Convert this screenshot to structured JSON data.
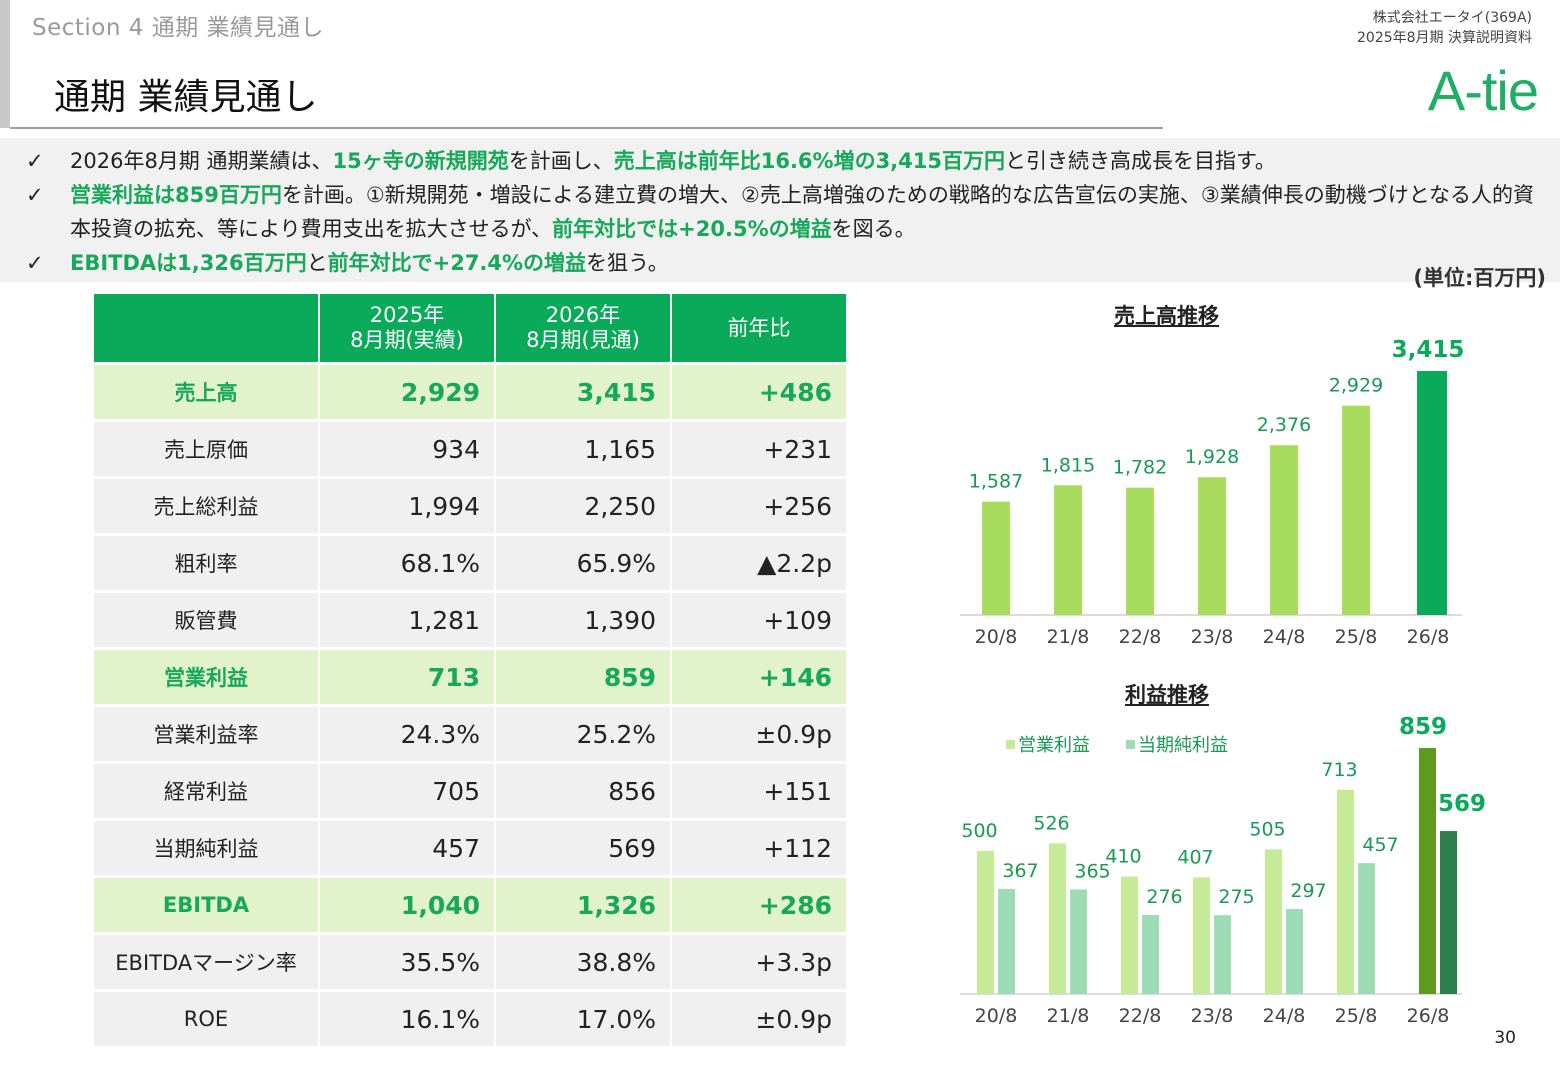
{
  "header": {
    "section_label": "Section 4  通期 業績見通し",
    "page_title": "通期 業績見通し",
    "company_line1": "株式会社エータイ(369A)",
    "company_line2": "2025年8月期  決算説明資料",
    "logo_text": "A-tie"
  },
  "bullets": {
    "check_icon": "✓",
    "b1": [
      "2026年8月期 通期業績は、",
      "15ヶ寺の新規開苑",
      "を計画し、",
      "売上高は前年比16.6%増の3,415百万円",
      "と引き続き高成長を目指す。"
    ],
    "b2": [
      "営業利益は859百万円",
      "を計画。①新規開苑・増設による建立費の増大、②売上高増強のための戦略的な広告宣伝の実施、③業績伸長の動機づけとなる人的資本投資の拡充、等により費用支出を拡大させるが、",
      "前年対比では+20.5%の増益",
      "を図る。"
    ],
    "b3": [
      "EBITDAは1,326百万円",
      "と",
      "前年対比で+27.4%の増益",
      "を狙う。"
    ]
  },
  "unit_label": "(単位:百万円)",
  "table": {
    "headers": [
      "",
      "2025年\n8月期(実績)",
      "2026年\n8月期(見通)",
      "前年比"
    ],
    "rows": [
      {
        "label": "売上高",
        "v2025": "2,929",
        "v2026": "3,415",
        "diff": "+486",
        "highlight": true
      },
      {
        "label": "売上原価",
        "v2025": "934",
        "v2026": "1,165",
        "diff": "+231",
        "highlight": false
      },
      {
        "label": "売上総利益",
        "v2025": "1,994",
        "v2026": "2,250",
        "diff": "+256",
        "highlight": false
      },
      {
        "label": "粗利率",
        "v2025": "68.1%",
        "v2026": "65.9%",
        "diff": "▲2.2p",
        "highlight": false
      },
      {
        "label": "販管費",
        "v2025": "1,281",
        "v2026": "1,390",
        "diff": "+109",
        "highlight": false
      },
      {
        "label": "営業利益",
        "v2025": "713",
        "v2026": "859",
        "diff": "+146",
        "highlight": true
      },
      {
        "label": "営業利益率",
        "v2025": "24.3%",
        "v2026": "25.2%",
        "diff": "±0.9p",
        "highlight": false
      },
      {
        "label": "経常利益",
        "v2025": "705",
        "v2026": "856",
        "diff": "+151",
        "highlight": false
      },
      {
        "label": "当期純利益",
        "v2025": "457",
        "v2026": "569",
        "diff": "+112",
        "highlight": false
      },
      {
        "label": "EBITDA",
        "v2025": "1,040",
        "v2026": "1,326",
        "diff": "+286",
        "highlight": true
      },
      {
        "label": "EBITDAマージン率",
        "v2025": "35.5%",
        "v2026": "38.8%",
        "diff": "+3.3p",
        "highlight": false
      },
      {
        "label": "ROE",
        "v2025": "16.1%",
        "v2026": "17.0%",
        "diff": "±0.9p",
        "highlight": false
      }
    ]
  },
  "chart_data": [
    {
      "type": "bar",
      "title": "売上高推移",
      "categories": [
        "20/8",
        "21/8",
        "22/8",
        "23/8",
        "24/8",
        "25/8",
        "26/8"
      ],
      "values": [
        1587,
        1815,
        1782,
        1928,
        2376,
        2929,
        3415
      ],
      "value_labels": [
        "1,587",
        "1,815",
        "1,782",
        "1,928",
        "2,376",
        "2,929",
        "3,415"
      ],
      "colors": [
        "#a8dc5c",
        "#a8dc5c",
        "#a8dc5c",
        "#a8dc5c",
        "#a8dc5c",
        "#a8dc5c",
        "#0aaa5a"
      ],
      "grid": false
    },
    {
      "type": "bar",
      "title": "利益推移",
      "categories": [
        "20/8",
        "21/8",
        "22/8",
        "23/8",
        "24/8",
        "25/8",
        "26/8"
      ],
      "series": [
        {
          "name": "営業利益",
          "values": [
            500,
            526,
            410,
            407,
            505,
            713,
            859
          ],
          "color": "#c6eb98",
          "last_color": "#5e9a1e"
        },
        {
          "name": "当期純利益",
          "values": [
            367,
            365,
            276,
            275,
            297,
            457,
            569
          ],
          "color": "#9edcb6",
          "last_color": "#2e7d4c"
        }
      ],
      "legend": "top-left",
      "grid": false
    }
  ],
  "page_number": "30"
}
